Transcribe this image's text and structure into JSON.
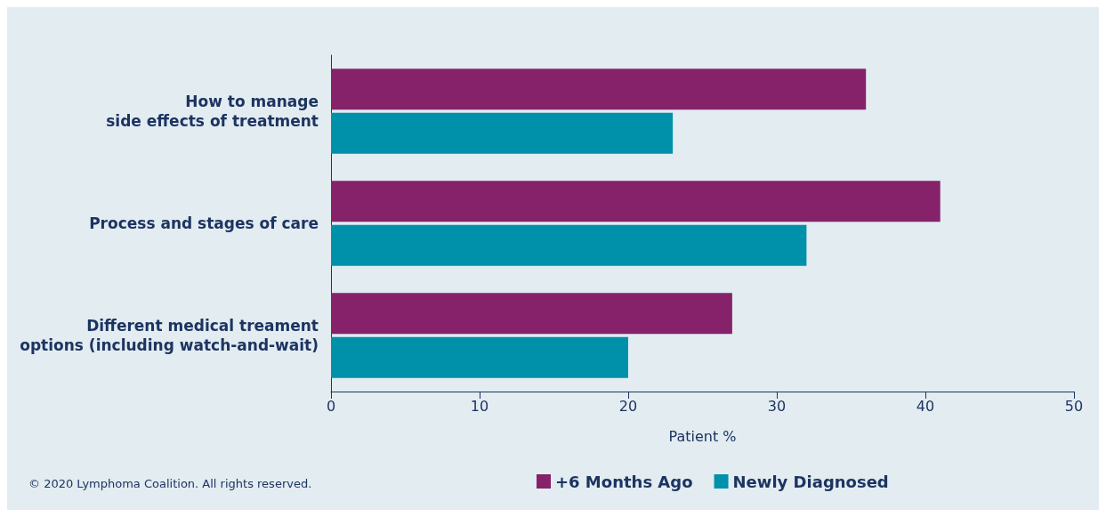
{
  "chart_data": {
    "type": "bar",
    "orientation": "horizontal",
    "categories": [
      "How to manage\nside effects of treatment",
      "Process and stages of care",
      "Different medical treament\noptions (including watch-and-wait)"
    ],
    "series": [
      {
        "name": "+6 Months Ago",
        "color": "#85226a",
        "values": [
          36,
          41,
          27
        ]
      },
      {
        "name": "Newly Diagnosed",
        "color": "#0091aa",
        "values": [
          23,
          32,
          20
        ]
      }
    ],
    "xlabel": "Patient %",
    "xlim": [
      0,
      50
    ],
    "xticks": [
      0,
      10,
      20,
      30,
      40,
      50
    ],
    "grid": false,
    "legend": "bottom",
    "annotations": [
      "© 2020 Lymphoma Coalition. All rights reserved."
    ]
  }
}
